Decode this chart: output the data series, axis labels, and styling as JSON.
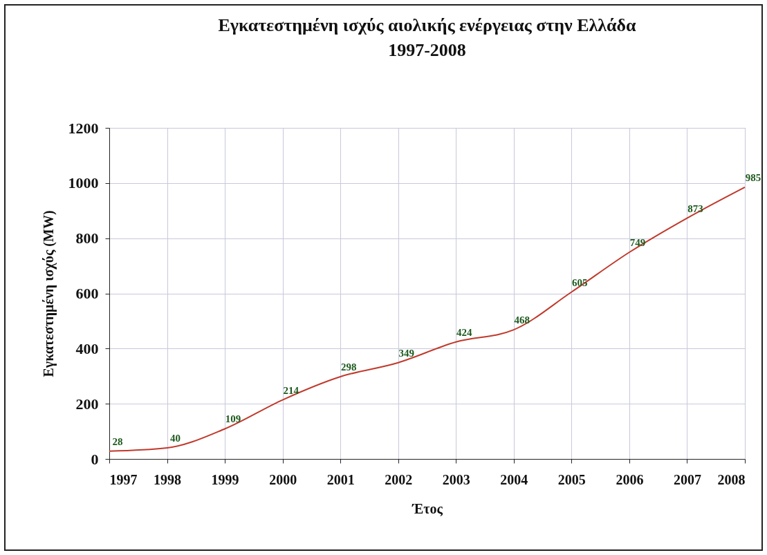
{
  "chart_data": {
    "type": "line",
    "title": "Εγκατεστημένη ισχύς αιολικής ενέργειας στην Ελλάδα",
    "subtitle": "1997-2008",
    "xlabel": "Έτος",
    "ylabel": "Εγκατεστημένη ισχύς (MW)",
    "x": [
      1997,
      1998,
      1999,
      2000,
      2001,
      2002,
      2003,
      2004,
      2005,
      2006,
      2007,
      2008
    ],
    "series": [
      {
        "color": "#c0392b",
        "values": [
          28,
          40,
          109,
          214,
          298,
          349,
          424,
          468,
          605,
          749,
          873,
          985
        ]
      }
    ],
    "xlim": [
      1997,
      2008
    ],
    "xticks": [
      1997,
      1998,
      1999,
      2000,
      2001,
      2002,
      2003,
      2004,
      2005,
      2006,
      2007,
      2008
    ],
    "ylim": [
      0,
      1200
    ],
    "yticks": [
      0,
      200,
      400,
      600,
      800,
      1000,
      1200
    ],
    "grid": true,
    "data_labels": true,
    "marker": "none",
    "line_style": "solid",
    "legend": false
  }
}
